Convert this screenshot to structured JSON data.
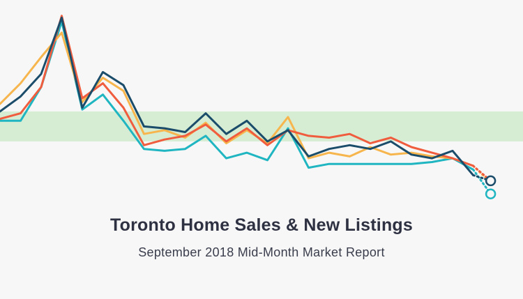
{
  "title": "Toronto Home Sales & New Listings",
  "subtitle": "September 2018 Mid-Month Market Report",
  "chart_data": {
    "type": "line",
    "title": "Toronto Home Sales & New Listings",
    "subtitle": "September 2018 Mid-Month Market Report",
    "xlabel": "",
    "ylabel": "",
    "x": [
      1,
      2,
      3,
      4,
      5,
      6,
      7,
      8,
      9,
      10,
      11,
      12,
      13,
      14,
      15,
      16,
      17,
      18,
      19,
      20,
      21,
      22,
      23,
      24
    ],
    "ylim": [
      0,
      100
    ],
    "grid": false,
    "legend": "none",
    "band": {
      "from": 32,
      "to": 48,
      "color": "#d6edd4"
    },
    "series": [
      {
        "color": "#1b4d6b",
        "values": [
          48,
          56,
          68,
          98,
          50,
          69,
          62,
          40,
          39,
          37,
          47,
          36,
          43,
          32,
          38,
          24,
          28,
          30,
          28,
          32,
          25,
          23,
          27,
          14
        ],
        "projection": 11,
        "projection_marker": "hollow-circle"
      },
      {
        "color": "#f05d3e",
        "values": [
          44,
          47,
          61,
          99,
          55,
          63,
          50,
          30,
          33,
          35,
          41,
          32,
          39,
          30,
          38,
          35,
          34,
          36,
          31,
          34,
          29,
          26,
          23,
          19
        ],
        "projection": 11
      },
      {
        "color": "#f7b64d",
        "values": [
          52,
          63,
          77,
          90,
          53,
          66,
          59,
          36,
          38,
          34,
          42,
          31,
          38,
          31,
          45,
          23,
          26,
          24,
          29,
          25,
          26,
          24,
          23,
          19
        ],
        "projection": 10
      },
      {
        "color": "#1fb5c1",
        "values": [
          43,
          43,
          61,
          96,
          49,
          57,
          43,
          28,
          27,
          28,
          35,
          23,
          26,
          22,
          39,
          18,
          20,
          20,
          20,
          20,
          20,
          21,
          23,
          17
        ],
        "projection": 4,
        "projection_marker": "hollow-circle"
      }
    ]
  }
}
